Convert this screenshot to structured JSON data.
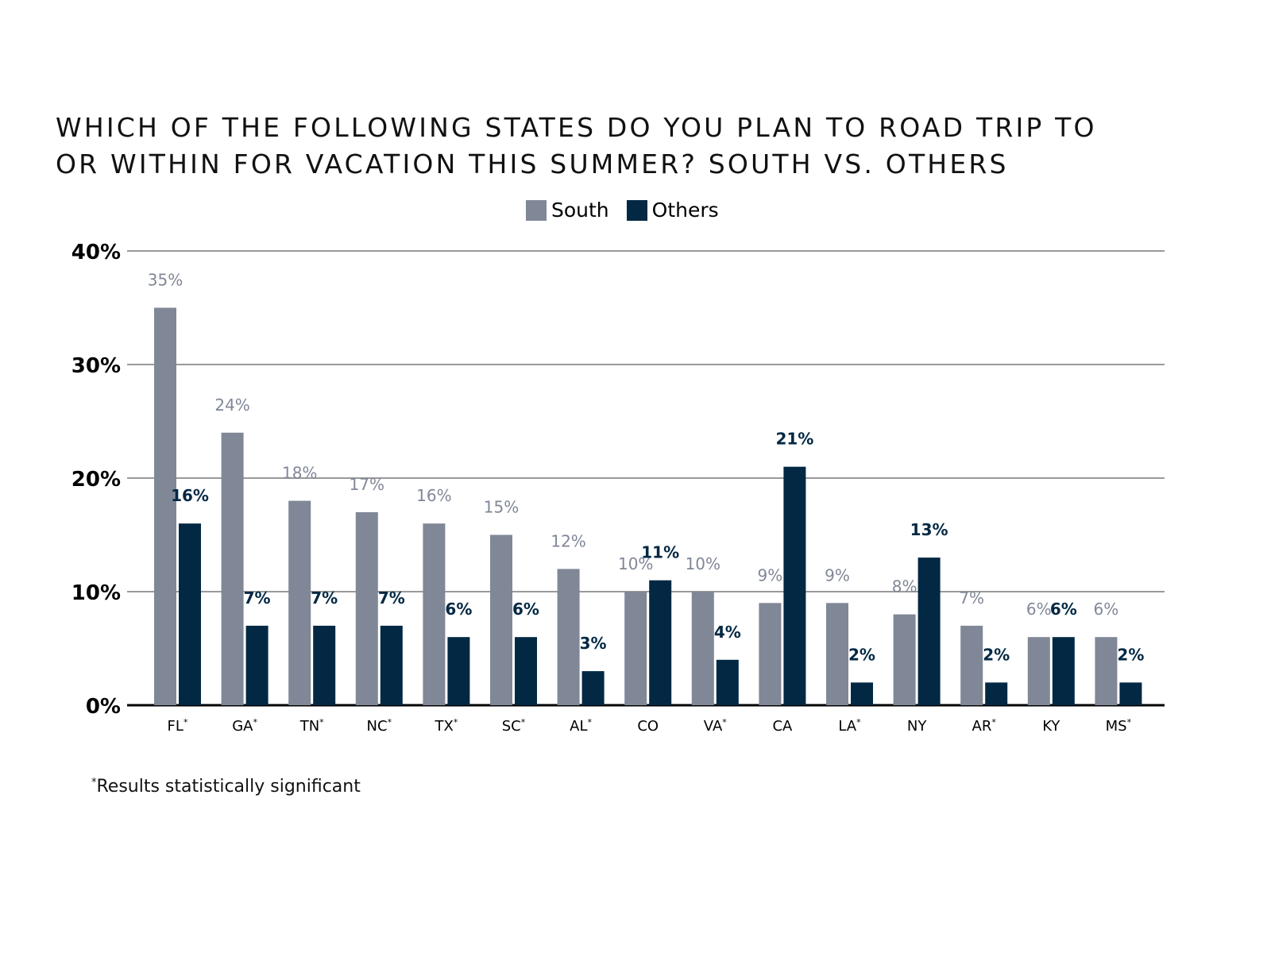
{
  "title_lines": [
    "WHICH OF THE FOLLOWING STATES DO YOU PLAN TO ROAD TRIP TO",
    "OR WITHIN FOR VACATION THIS SUMMER? SOUTH VS. OTHERS"
  ],
  "legend": [
    {
      "label": "South",
      "color": "#808797"
    },
    {
      "label": "Others",
      "color": "#022843"
    }
  ],
  "footnote": {
    "marker": "*",
    "text": "Results statistically significant"
  },
  "chart_data": {
    "type": "bar",
    "title": "WHICH OF THE FOLLOWING STATES DO YOU PLAN TO ROAD TRIP TO OR WITHIN FOR VACATION THIS SUMMER? SOUTH VS. OTHERS",
    "xlabel": "",
    "ylabel": "",
    "ylim": [
      0,
      40
    ],
    "yticks": [
      "0%",
      "10%",
      "20%",
      "30%",
      "40%"
    ],
    "grid": true,
    "legend_position": "top",
    "categories": [
      "FL*",
      "GA*",
      "TN*",
      "NC*",
      "TX*",
      "SC*",
      "AL*",
      "CO",
      "VA*",
      "CA",
      "LA*",
      "NY",
      "AR*",
      "KY",
      "MS*"
    ],
    "series": [
      {
        "name": "South",
        "color": "#808797",
        "values": [
          35,
          24,
          18,
          17,
          16,
          15,
          12,
          10,
          10,
          9,
          9,
          8,
          7,
          6,
          6
        ]
      },
      {
        "name": "Others",
        "color": "#022843",
        "values": [
          16,
          7,
          7,
          7,
          6,
          6,
          3,
          11,
          4,
          21,
          2,
          13,
          2,
          6,
          2
        ]
      }
    ],
    "annotation": "*Results statistically significant"
  }
}
